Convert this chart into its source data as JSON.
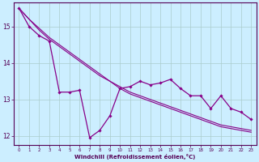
{
  "xlabel": "Windchill (Refroidissement éolien,°C)",
  "background_color": "#cceeff",
  "grid_color": "#aacccc",
  "line_color": "#880088",
  "x_values": [
    0,
    1,
    2,
    3,
    4,
    5,
    6,
    7,
    8,
    9,
    10,
    11,
    12,
    13,
    14,
    15,
    16,
    17,
    18,
    19,
    20,
    21,
    22,
    23
  ],
  "series1": [
    15.5,
    15.0,
    14.75,
    14.6,
    13.2,
    13.2,
    13.25,
    11.95,
    12.15,
    12.55,
    13.3,
    13.35,
    13.5,
    13.4,
    13.45,
    13.55,
    13.3,
    13.1,
    13.1,
    12.75,
    13.1,
    12.75,
    12.65,
    12.45
  ],
  "series2": [
    15.5,
    15.2,
    14.95,
    14.7,
    14.5,
    14.3,
    14.1,
    13.9,
    13.7,
    13.5,
    13.35,
    13.2,
    13.1,
    13.0,
    12.9,
    12.8,
    12.7,
    12.6,
    12.5,
    12.4,
    12.3,
    12.25,
    12.2,
    12.15
  ],
  "series3": [
    15.5,
    15.2,
    14.9,
    14.65,
    14.45,
    14.25,
    14.05,
    13.85,
    13.65,
    13.5,
    13.3,
    13.15,
    13.05,
    12.95,
    12.85,
    12.75,
    12.65,
    12.55,
    12.45,
    12.35,
    12.25,
    12.2,
    12.15,
    12.1
  ],
  "ylim": [
    11.75,
    15.65
  ],
  "xlim": [
    -0.5,
    23.5
  ],
  "yticks": [
    12,
    13,
    14,
    15
  ],
  "xticks": [
    0,
    1,
    2,
    3,
    4,
    5,
    6,
    7,
    8,
    9,
    10,
    11,
    12,
    13,
    14,
    15,
    16,
    17,
    18,
    19,
    20,
    21,
    22,
    23
  ]
}
